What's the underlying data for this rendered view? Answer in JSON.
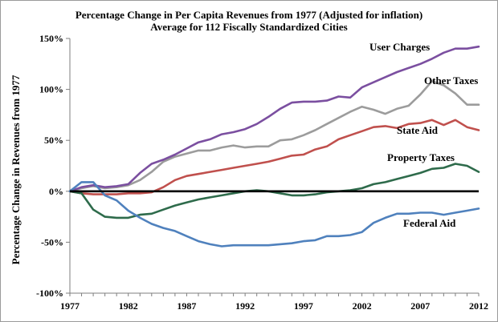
{
  "chart_data": {
    "type": "line",
    "title": "Percentage Change in Per Capita Revenues from 1977 (Adjusted for inflation)",
    "subtitle": "Average for 112 Fiscally Standardized Cities",
    "xlabel": "",
    "ylabel": "Percentage Change in Revenues from 1977",
    "xlim": [
      1977,
      2012
    ],
    "ylim": [
      -100,
      150
    ],
    "x_ticks": [
      1977,
      1982,
      1987,
      1992,
      1997,
      2002,
      2007,
      2012
    ],
    "y_ticks": [
      -100,
      -50,
      0,
      50,
      100,
      150
    ],
    "y_tick_labels": [
      "-100%",
      "-50%",
      "0%",
      "50%",
      "100%",
      "150%"
    ],
    "grid": false,
    "x": [
      1977,
      1978,
      1979,
      1980,
      1981,
      1982,
      1983,
      1984,
      1985,
      1986,
      1987,
      1988,
      1989,
      1990,
      1991,
      1992,
      1993,
      1994,
      1995,
      1996,
      1997,
      1998,
      1999,
      2000,
      2001,
      2002,
      2003,
      2004,
      2005,
      2006,
      2007,
      2008,
      2009,
      2010,
      2011,
      2012
    ],
    "series": [
      {
        "name": "User Charges",
        "color": "#7b4fa0",
        "values": [
          0,
          4,
          6,
          4,
          5,
          7,
          18,
          27,
          31,
          36,
          42,
          48,
          51,
          56,
          58,
          61,
          66,
          73,
          81,
          87,
          88,
          88,
          89,
          93,
          92,
          102,
          107,
          112,
          117,
          121,
          125,
          130,
          136,
          140,
          140,
          142
        ]
      },
      {
        "name": "Other Taxes",
        "color": "#9c9c9c",
        "values": [
          0,
          3,
          5,
          3,
          4,
          6,
          11,
          19,
          29,
          34,
          37,
          40,
          40,
          43,
          45,
          43,
          44,
          44,
          50,
          51,
          55,
          60,
          66,
          72,
          78,
          83,
          80,
          76,
          81,
          84,
          95,
          108,
          104,
          96,
          85,
          85
        ]
      },
      {
        "name": "State Aid",
        "color": "#c0504d",
        "values": [
          0,
          -2,
          -3,
          -3,
          -3,
          -2,
          -2,
          -1,
          4,
          11,
          15,
          17,
          19,
          21,
          23,
          25,
          27,
          29,
          32,
          35,
          36,
          41,
          44,
          51,
          55,
          59,
          63,
          64,
          62,
          66,
          67,
          70,
          65,
          70,
          63,
          60
        ]
      },
      {
        "name": "Property Taxes",
        "color": "#2e6b4b",
        "values": [
          0,
          -2,
          -18,
          -25,
          -26,
          -26,
          -23,
          -22,
          -18,
          -14,
          -11,
          -8,
          -6,
          -4,
          -2,
          0,
          1,
          0,
          -2,
          -4,
          -4,
          -3,
          -1,
          0,
          1,
          3,
          7,
          9,
          12,
          15,
          18,
          22,
          23,
          27,
          25,
          19
        ]
      },
      {
        "name": "Federal Aid",
        "color": "#4f81bd",
        "values": [
          0,
          9,
          9,
          -4,
          -9,
          -19,
          -26,
          -32,
          -36,
          -39,
          -44,
          -49,
          -52,
          -54,
          -53,
          -53,
          -53,
          -53,
          -52,
          -51,
          -49,
          -48,
          -44,
          -44,
          -43,
          -40,
          -31,
          -26,
          -22,
          -22,
          -21,
          -21,
          -23,
          -21,
          -19,
          -17
        ]
      }
    ],
    "series_labels": [
      "User Charges",
      "Other Taxes",
      "State Aid",
      "Property Taxes",
      "Federal Aid"
    ]
  }
}
